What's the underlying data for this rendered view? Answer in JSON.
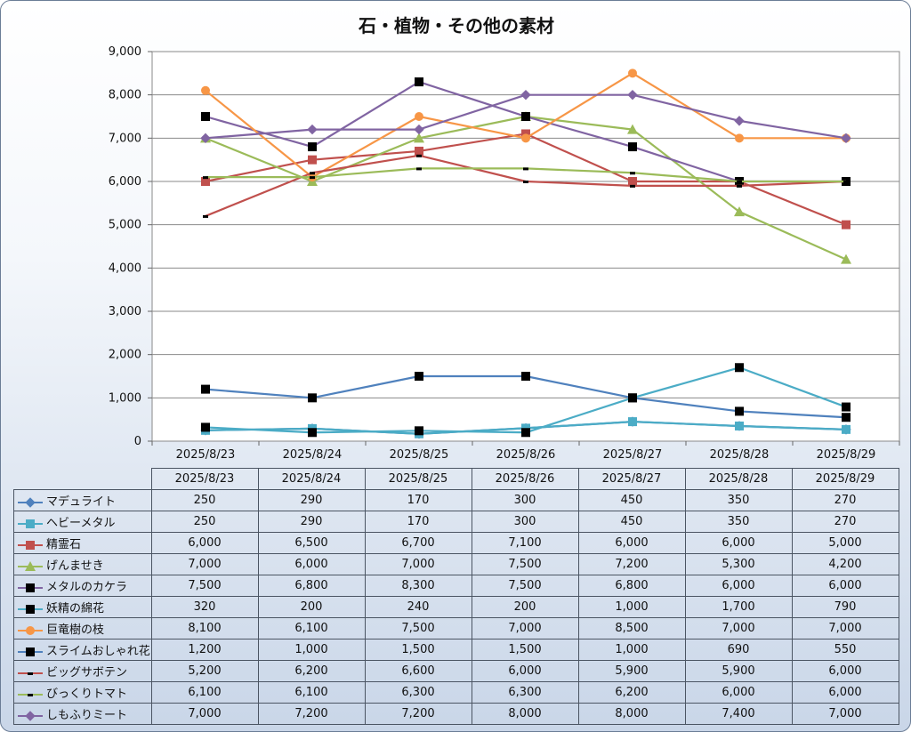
{
  "chart_data": {
    "type": "line",
    "title": "石・植物・その他の素材",
    "categories": [
      "2025/8/23",
      "2025/8/24",
      "2025/8/25",
      "2025/8/26",
      "2025/8/27",
      "2025/8/28",
      "2025/8/29"
    ],
    "ylim": [
      0,
      9000
    ],
    "ytick_labels": [
      "0",
      "1,000",
      "2,000",
      "3,000",
      "4,000",
      "5,000",
      "6,000",
      "7,000",
      "8,000",
      "9,000"
    ],
    "grid": true,
    "legend": "data-table",
    "series": [
      {
        "name": "マデュライト",
        "color": "#4f81bd",
        "marker": "diamond",
        "values": [
          250,
          290,
          170,
          300,
          450,
          350,
          270
        ],
        "labels": [
          "250",
          "290",
          "170",
          "300",
          "450",
          "350",
          "270"
        ]
      },
      {
        "name": "ヘビーメタル",
        "color": "#4bacc6",
        "marker": "square",
        "values": [
          250,
          290,
          170,
          300,
          450,
          350,
          270
        ],
        "labels": [
          "250",
          "290",
          "170",
          "300",
          "450",
          "350",
          "270"
        ]
      },
      {
        "name": "精霊石",
        "color": "#c0504d",
        "marker": "square",
        "values": [
          6000,
          6500,
          6700,
          7100,
          6000,
          6000,
          5000
        ],
        "labels": [
          "6,000",
          "6,500",
          "6,700",
          "7,100",
          "6,000",
          "6,000",
          "5,000"
        ]
      },
      {
        "name": "げんませき",
        "color": "#9bbb59",
        "marker": "triangle",
        "values": [
          7000,
          6000,
          7000,
          7500,
          7200,
          5300,
          4200
        ],
        "labels": [
          "7,000",
          "6,000",
          "7,000",
          "7,500",
          "7,200",
          "5,300",
          "4,200"
        ]
      },
      {
        "name": "メタルのカケラ",
        "color": "#8064a2",
        "marker": "blacksquare",
        "values": [
          7500,
          6800,
          8300,
          7500,
          6800,
          6000,
          6000
        ],
        "labels": [
          "7,500",
          "6,800",
          "8,300",
          "7,500",
          "6,800",
          "6,000",
          "6,000"
        ]
      },
      {
        "name": "妖精の綿花",
        "color": "#4bacc6",
        "marker": "blacksquare",
        "values": [
          320,
          200,
          240,
          200,
          1000,
          1700,
          790
        ],
        "labels": [
          "320",
          "200",
          "240",
          "200",
          "1,000",
          "1,700",
          "790"
        ]
      },
      {
        "name": "巨竜樹の枝",
        "color": "#f79646",
        "marker": "circle",
        "values": [
          8100,
          6100,
          7500,
          7000,
          8500,
          7000,
          7000
        ],
        "labels": [
          "8,100",
          "6,100",
          "7,500",
          "7,000",
          "8,500",
          "7,000",
          "7,000"
        ]
      },
      {
        "name": "スライムおしゃれ花",
        "color": "#4f81bd",
        "marker": "blacksquare",
        "values": [
          1200,
          1000,
          1500,
          1500,
          1000,
          690,
          550
        ],
        "labels": [
          "1,200",
          "1,000",
          "1,500",
          "1,500",
          "1,000",
          "690",
          "550"
        ]
      },
      {
        "name": "ビッグサボテン",
        "color": "#c0504d",
        "marker": "dash",
        "values": [
          5200,
          6200,
          6600,
          6000,
          5900,
          5900,
          6000
        ],
        "labels": [
          "5,200",
          "6,200",
          "6,600",
          "6,000",
          "5,900",
          "5,900",
          "6,000"
        ]
      },
      {
        "name": "びっくりトマト",
        "color": "#9bbb59",
        "marker": "dash",
        "values": [
          6100,
          6100,
          6300,
          6300,
          6200,
          6000,
          6000
        ],
        "labels": [
          "6,100",
          "6,100",
          "6,300",
          "6,300",
          "6,200",
          "6,000",
          "6,000"
        ]
      },
      {
        "name": "しもふりミート",
        "color": "#8064a2",
        "marker": "diamond",
        "values": [
          7000,
          7200,
          7200,
          8000,
          8000,
          7400,
          7000
        ],
        "labels": [
          "7,000",
          "7,200",
          "7,200",
          "8,000",
          "8,000",
          "7,400",
          "7,000"
        ]
      }
    ]
  }
}
